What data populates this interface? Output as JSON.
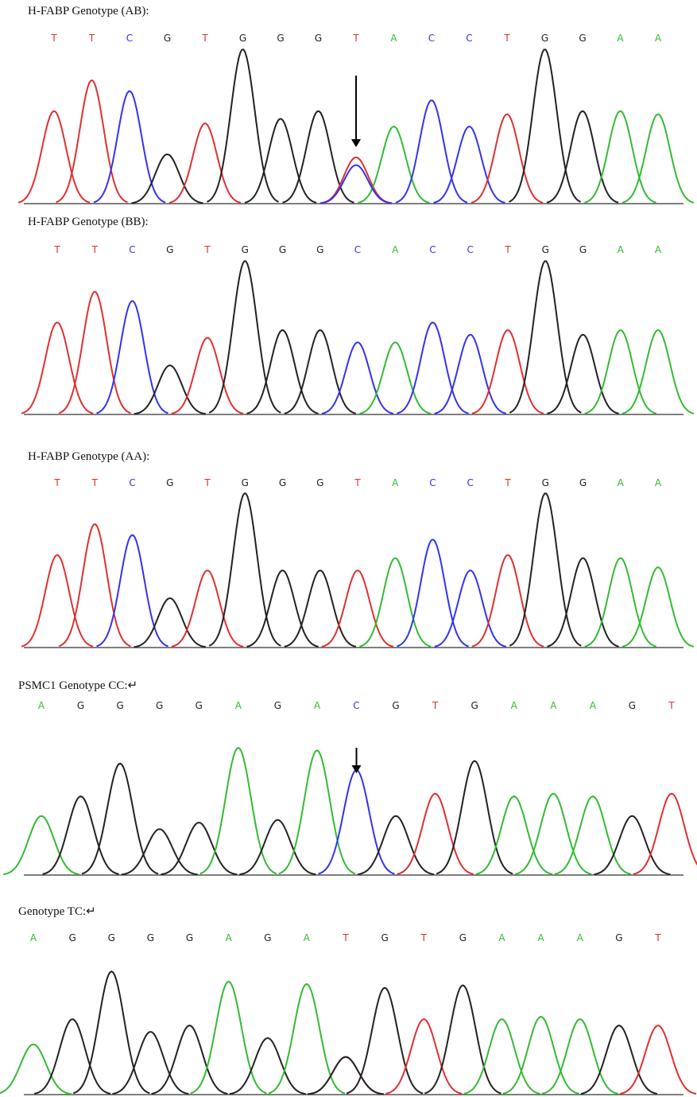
{
  "panels": [
    {
      "title": "H-FABP Genotype (AB):",
      "bases": [
        "T",
        "T",
        "C",
        "G",
        "T",
        "G",
        "G",
        "G",
        "T",
        "A",
        "C",
        "C",
        "T",
        "G",
        "G",
        "A",
        "A"
      ]
    },
    {
      "title": "H-FABP Genotype (BB):",
      "bases": [
        "T",
        "T",
        "C",
        "G",
        "T",
        "G",
        "G",
        "G",
        "C",
        "A",
        "C",
        "C",
        "T",
        "G",
        "G",
        "A",
        "A"
      ]
    },
    {
      "title": "H-FABP Genotype (AA):",
      "bases": [
        "T",
        "T",
        "C",
        "G",
        "T",
        "G",
        "G",
        "G",
        "T",
        "A",
        "C",
        "C",
        "T",
        "G",
        "G",
        "A",
        "A"
      ]
    },
    {
      "title": "PSMC1 Genotype CC:↵",
      "bases": [
        "A",
        "G",
        "G",
        "G",
        "G",
        "A",
        "G",
        "A",
        "C",
        "G",
        "T",
        "G",
        "A",
        "A",
        "A",
        "G",
        "T"
      ]
    },
    {
      "title": "Genotype TC:↵",
      "bases": [
        "A",
        "G",
        "G",
        "G",
        "G",
        "A",
        "G",
        "A",
        "T",
        "G",
        "T",
        "G",
        "A",
        "A",
        "A",
        "G",
        "T"
      ]
    }
  ]
}
